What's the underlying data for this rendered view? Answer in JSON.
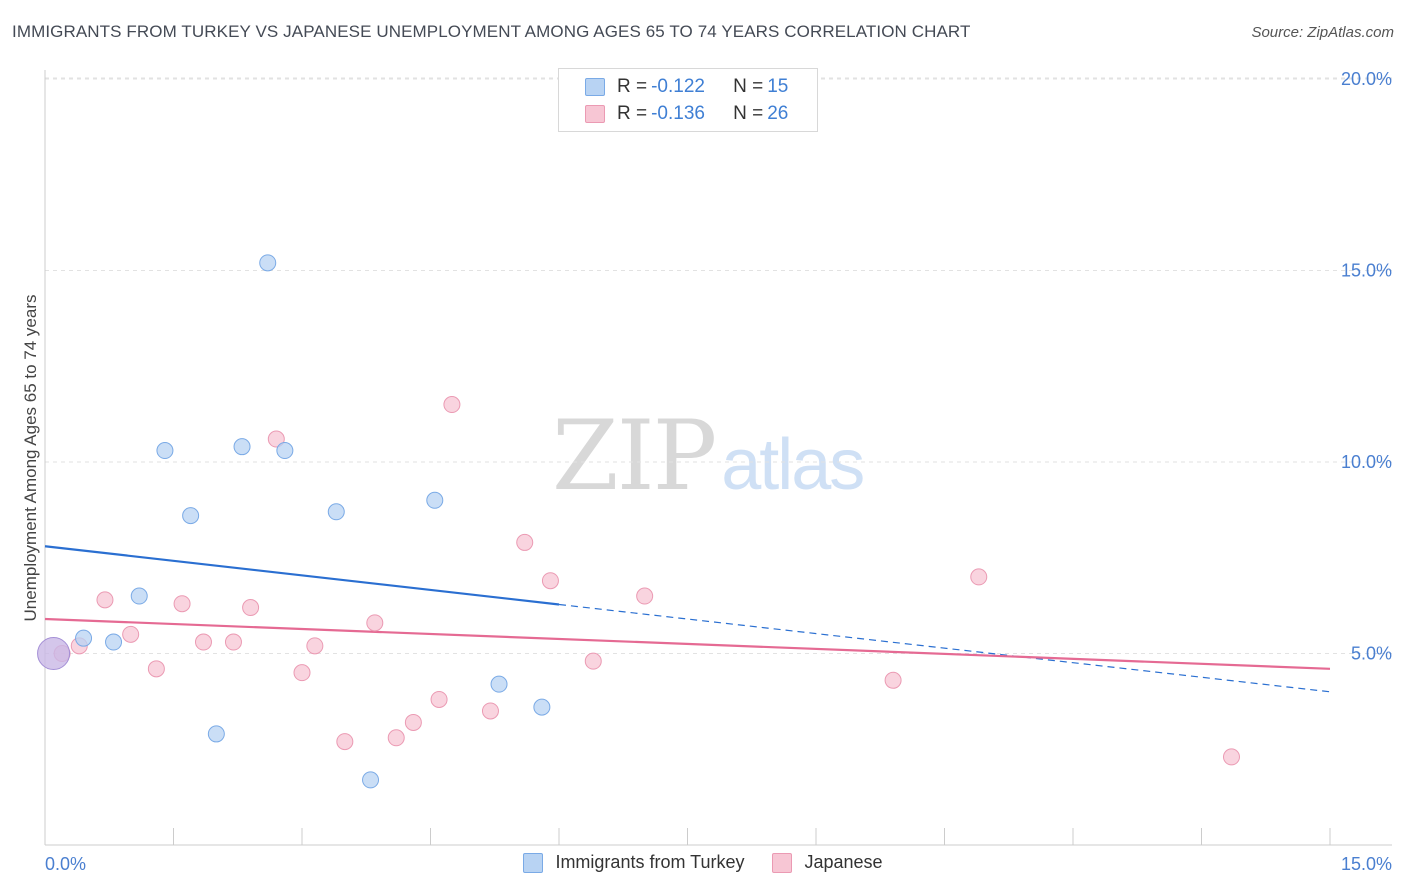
{
  "header": {
    "title": "IMMIGRANTS FROM TURKEY VS JAPANESE UNEMPLOYMENT AMONG AGES 65 TO 74 YEARS CORRELATION CHART",
    "source": "Source: ZipAtlas.com"
  },
  "watermark": {
    "zip": "ZIP",
    "atlas": "atlas"
  },
  "colors": {
    "turkey_fill": "#b8d3f3",
    "turkey_stroke": "#7aaae6",
    "turkey_line": "#2a6fd1",
    "japanese_fill": "#f7c6d4",
    "japanese_stroke": "#eb9ab3",
    "japanese_line": "#e56a93",
    "grid": "#e2e2e2",
    "tick_text": "#4a7fd0"
  },
  "legend": {
    "rows": [
      {
        "series": "turkey",
        "r_label": "R = ",
        "r_value": "-0.122",
        "n_label": "N = ",
        "n_value": "15"
      },
      {
        "series": "japanese",
        "r_label": "R = ",
        "r_value": "-0.136",
        "n_label": "N = ",
        "n_value": "26"
      }
    ]
  },
  "chart_data": {
    "type": "scatter",
    "title": "IMMIGRANTS FROM TURKEY VS JAPANESE UNEMPLOYMENT AMONG AGES 65 TO 74 YEARS CORRELATION CHART",
    "xlabel": "",
    "ylabel": "Unemployment Among Ages 65 to 74 years",
    "xlim": [
      0,
      15
    ],
    "ylim": [
      0,
      20.5
    ],
    "x_tick_labels": [
      "0.0%",
      "15.0%"
    ],
    "y_ticks": [
      5,
      10,
      15,
      20
    ],
    "y_tick_labels": [
      "5.0%",
      "10.0%",
      "15.0%",
      "20.0%"
    ],
    "grid": true,
    "series": [
      {
        "name": "Immigrants from Turkey",
        "key": "turkey",
        "points": [
          {
            "x": 0.1,
            "y": 5.0,
            "big": true
          },
          {
            "x": 0.45,
            "y": 5.4
          },
          {
            "x": 0.8,
            "y": 5.3
          },
          {
            "x": 1.1,
            "y": 6.5
          },
          {
            "x": 1.4,
            "y": 10.3
          },
          {
            "x": 1.7,
            "y": 8.6
          },
          {
            "x": 2.0,
            "y": 2.9
          },
          {
            "x": 2.3,
            "y": 10.4
          },
          {
            "x": 2.6,
            "y": 15.2
          },
          {
            "x": 2.8,
            "y": 10.3
          },
          {
            "x": 3.4,
            "y": 8.7
          },
          {
            "x": 3.8,
            "y": 1.7
          },
          {
            "x": 4.55,
            "y": 9.0
          },
          {
            "x": 5.3,
            "y": 4.2
          },
          {
            "x": 5.8,
            "y": 3.6
          }
        ],
        "trend": {
          "x0": 0.0,
          "y0": 7.8,
          "x_solid_end": 6.0,
          "x1": 15.0,
          "y1": 4.0
        }
      },
      {
        "name": "Japanese",
        "key": "japanese",
        "points": [
          {
            "x": 0.4,
            "y": 5.2
          },
          {
            "x": 0.7,
            "y": 6.4
          },
          {
            "x": 1.0,
            "y": 5.5
          },
          {
            "x": 1.3,
            "y": 4.6
          },
          {
            "x": 1.6,
            "y": 6.3
          },
          {
            "x": 1.85,
            "y": 5.3
          },
          {
            "x": 2.2,
            "y": 5.3
          },
          {
            "x": 2.4,
            "y": 6.2
          },
          {
            "x": 2.7,
            "y": 10.6
          },
          {
            "x": 3.0,
            "y": 4.5
          },
          {
            "x": 3.15,
            "y": 5.2
          },
          {
            "x": 3.5,
            "y": 2.7
          },
          {
            "x": 3.85,
            "y": 5.8
          },
          {
            "x": 4.1,
            "y": 2.8
          },
          {
            "x": 4.3,
            "y": 3.2
          },
          {
            "x": 4.6,
            "y": 3.8
          },
          {
            "x": 4.75,
            "y": 11.5
          },
          {
            "x": 5.2,
            "y": 3.5
          },
          {
            "x": 5.6,
            "y": 7.9
          },
          {
            "x": 5.9,
            "y": 6.9
          },
          {
            "x": 6.4,
            "y": 4.8
          },
          {
            "x": 7.0,
            "y": 6.5
          },
          {
            "x": 9.9,
            "y": 4.3
          },
          {
            "x": 10.9,
            "y": 7.0
          },
          {
            "x": 13.85,
            "y": 2.3
          },
          {
            "x": 0.2,
            "y": 5.0
          }
        ],
        "trend": {
          "x0": 0.0,
          "y0": 5.9,
          "x1": 15.0,
          "y1": 4.6
        }
      }
    ]
  }
}
